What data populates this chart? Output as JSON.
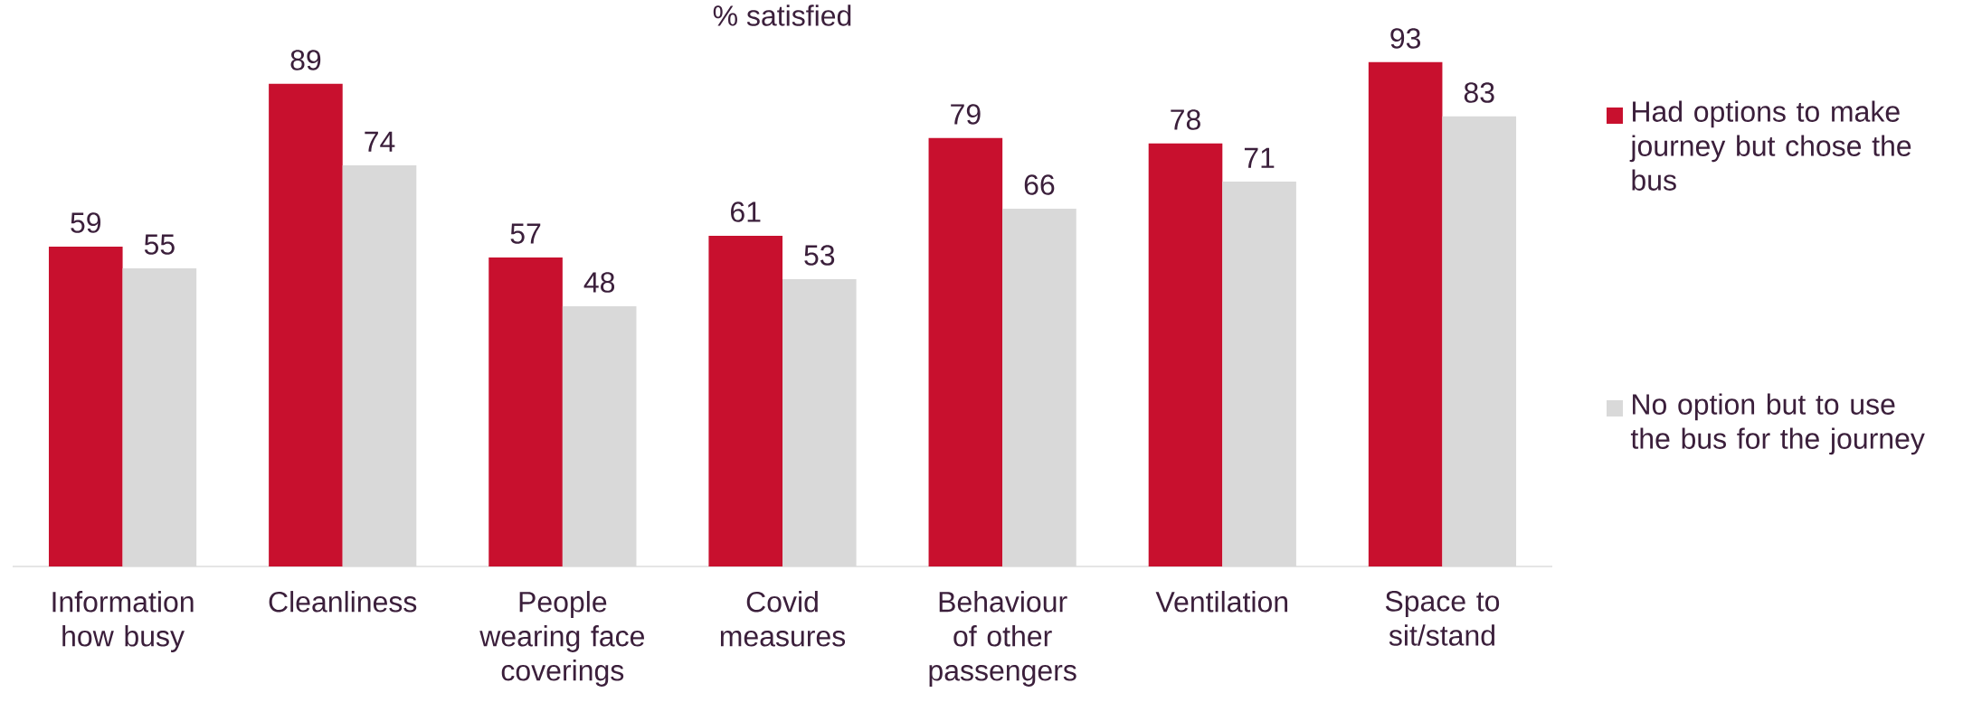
{
  "chart_data": {
    "type": "bar",
    "title": "% satisfied",
    "categories": [
      "Information how busy",
      "Cleanliness",
      "People wearing face coverings",
      "Covid measures",
      "Behaviour of other passengers",
      "Ventilation",
      "Space to sit/stand"
    ],
    "series": [
      {
        "name": "Had options to make journey but chose the bus",
        "color": "#c8102e",
        "values": [
          59,
          89,
          57,
          61,
          79,
          78,
          93
        ]
      },
      {
        "name": "No option but to use the bus for the journey",
        "color": "#d9d9d9",
        "values": [
          55,
          74,
          48,
          53,
          66,
          71,
          83
        ]
      }
    ],
    "data_labels": true,
    "legend": "right"
  }
}
